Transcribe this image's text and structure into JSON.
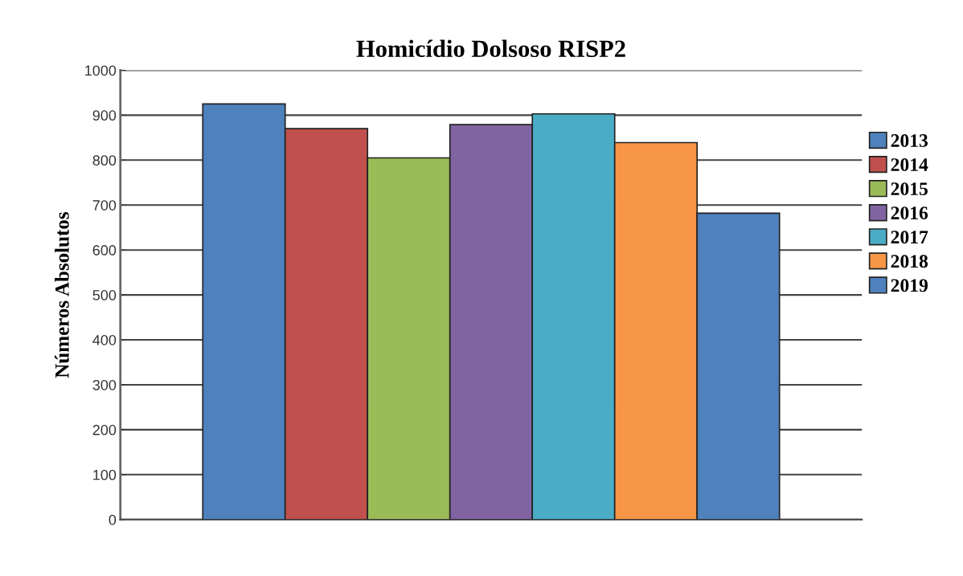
{
  "chart_data": {
    "type": "bar",
    "title": "Homicídio Dolsoso RISP2",
    "ylabel": "Números Absolutos",
    "categories": [
      null
    ],
    "series": [
      {
        "name": "2013",
        "color": "#4f81bd",
        "values": [
          925
        ]
      },
      {
        "name": "2014",
        "color": "#c0504d",
        "values": [
          870
        ]
      },
      {
        "name": "2015",
        "color": "#9bbb59",
        "values": [
          805
        ]
      },
      {
        "name": "2016",
        "color": "#8064a2",
        "values": [
          879
        ]
      },
      {
        "name": "2017",
        "color": "#4bacc6",
        "values": [
          903
        ]
      },
      {
        "name": "2018",
        "color": "#f79646",
        "values": [
          839
        ]
      },
      {
        "name": "2019",
        "color": "#4f81bd",
        "values": [
          682
        ]
      }
    ],
    "ylim": [
      0,
      1000
    ],
    "yticks": [
      0,
      100,
      200,
      300,
      400,
      500,
      600,
      700,
      800,
      900,
      1000
    ],
    "grid": "y",
    "legend": "right",
    "tick_labels": "y"
  }
}
